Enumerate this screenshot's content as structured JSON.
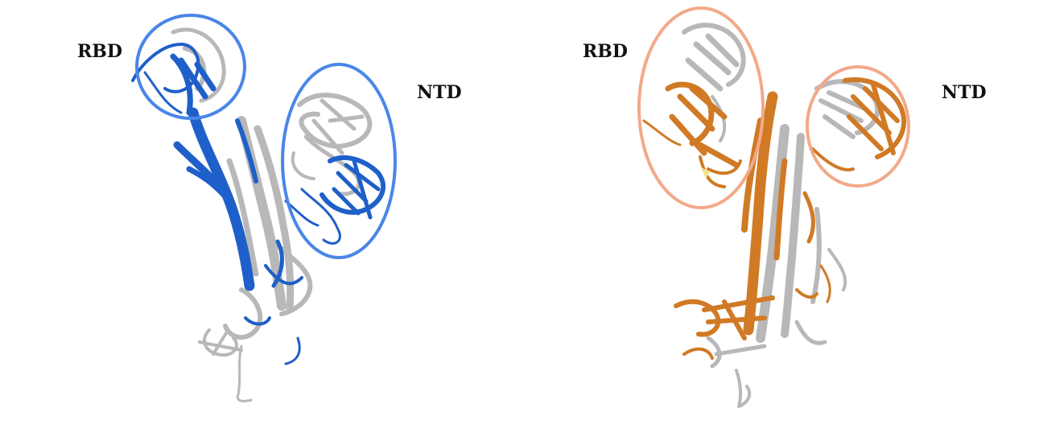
{
  "panels": [
    {
      "id": "left",
      "label_rbd": "RBD",
      "label_ntd": "NTD",
      "highlight_color": "#4a86e8",
      "structure_color": "#1f5fc9",
      "reference_color": "#b8b8b8"
    },
    {
      "id": "right",
      "label_rbd": "RBD",
      "label_ntd": "NTD",
      "highlight_color": "#f2a98a",
      "structure_color": "#d07a25",
      "reference_color": "#b8b8b8"
    }
  ]
}
